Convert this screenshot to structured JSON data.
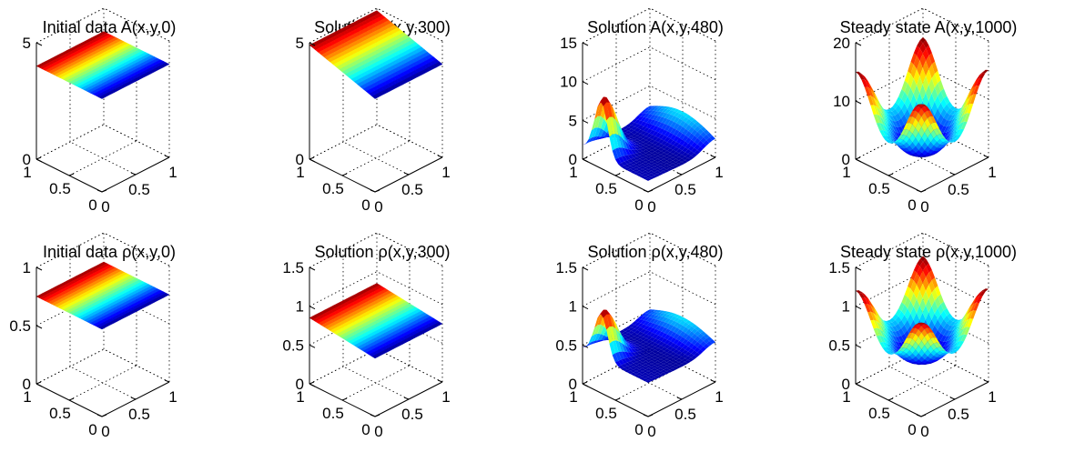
{
  "chart_data": [
    {
      "type": "surface",
      "title": "Initial data A(x,y,0)",
      "zlim": [
        0,
        5
      ],
      "zticks": [
        "0",
        "5"
      ],
      "xticks": [
        "0",
        "0.5",
        "1"
      ],
      "yticks": [
        "0",
        "0.5",
        "1"
      ],
      "shape": "ramp",
      "zmin": 4,
      "zmax": 4
    },
    {
      "type": "surface",
      "title": "Solution A(x,y,300)",
      "zlim": [
        0,
        5
      ],
      "zticks": [
        "0",
        "5"
      ],
      "xticks": [
        "0",
        "0.5",
        "1"
      ],
      "yticks": [
        "0",
        "0.5",
        "1"
      ],
      "shape": "ramp",
      "zmin": 4,
      "zmax": 4.9
    },
    {
      "type": "surface",
      "title": "Solution A(x,y,480)",
      "zlim": [
        0,
        15
      ],
      "zticks": [
        "0",
        "5",
        "10",
        "15"
      ],
      "xticks": [
        "0",
        "0.5",
        "1"
      ],
      "yticks": [
        "0",
        "0.5",
        "1"
      ],
      "shape": "wave",
      "zmin": 1,
      "zmax": 9
    },
    {
      "type": "surface",
      "title": "Steady state A(x,y,1000)",
      "zlim": [
        0,
        20
      ],
      "zticks": [
        "0",
        "10",
        "20"
      ],
      "xticks": [
        "0",
        "0.5",
        "1"
      ],
      "yticks": [
        "0",
        "0.5",
        "1"
      ],
      "shape": "bowl",
      "zmin": 1,
      "zmax": 15
    },
    {
      "type": "surface",
      "title": "Initial data ρ(x,y,0)",
      "zlim": [
        0,
        1
      ],
      "zticks": [
        "0",
        "0.5",
        "1"
      ],
      "xticks": [
        "0",
        "0.5",
        "1"
      ],
      "yticks": [
        "0",
        "0.5",
        "1"
      ],
      "shape": "ramp",
      "zmin": 0.75,
      "zmax": 0.75
    },
    {
      "type": "surface",
      "title": "Solution ρ(x,y,300)",
      "zlim": [
        0,
        1.5
      ],
      "zticks": [
        "0",
        "0.5",
        "1",
        "1.5"
      ],
      "xticks": [
        "0",
        "0.5",
        "1"
      ],
      "yticks": [
        "0",
        "0.5",
        "1"
      ],
      "shape": "ramp",
      "zmin": 0.75,
      "zmax": 0.85
    },
    {
      "type": "surface",
      "title": "Solution ρ(x,y,480)",
      "zlim": [
        0,
        1.5
      ],
      "zticks": [
        "0",
        "0.5",
        "1",
        "1.5"
      ],
      "xticks": [
        "0",
        "0.5",
        "1"
      ],
      "yticks": [
        "0",
        "0.5",
        "1"
      ],
      "shape": "wave",
      "zmin": 0.4,
      "zmax": 1.05
    },
    {
      "type": "surface",
      "title": "Steady state ρ(x,y,1000)",
      "zlim": [
        0,
        1.5
      ],
      "zticks": [
        "0",
        "0.5",
        "1",
        "1.5"
      ],
      "xticks": [
        "0",
        "0.5",
        "1"
      ],
      "yticks": [
        "0",
        "0.5",
        "1"
      ],
      "shape": "bowl",
      "zmin": 0.3,
      "zmax": 1.2
    }
  ]
}
